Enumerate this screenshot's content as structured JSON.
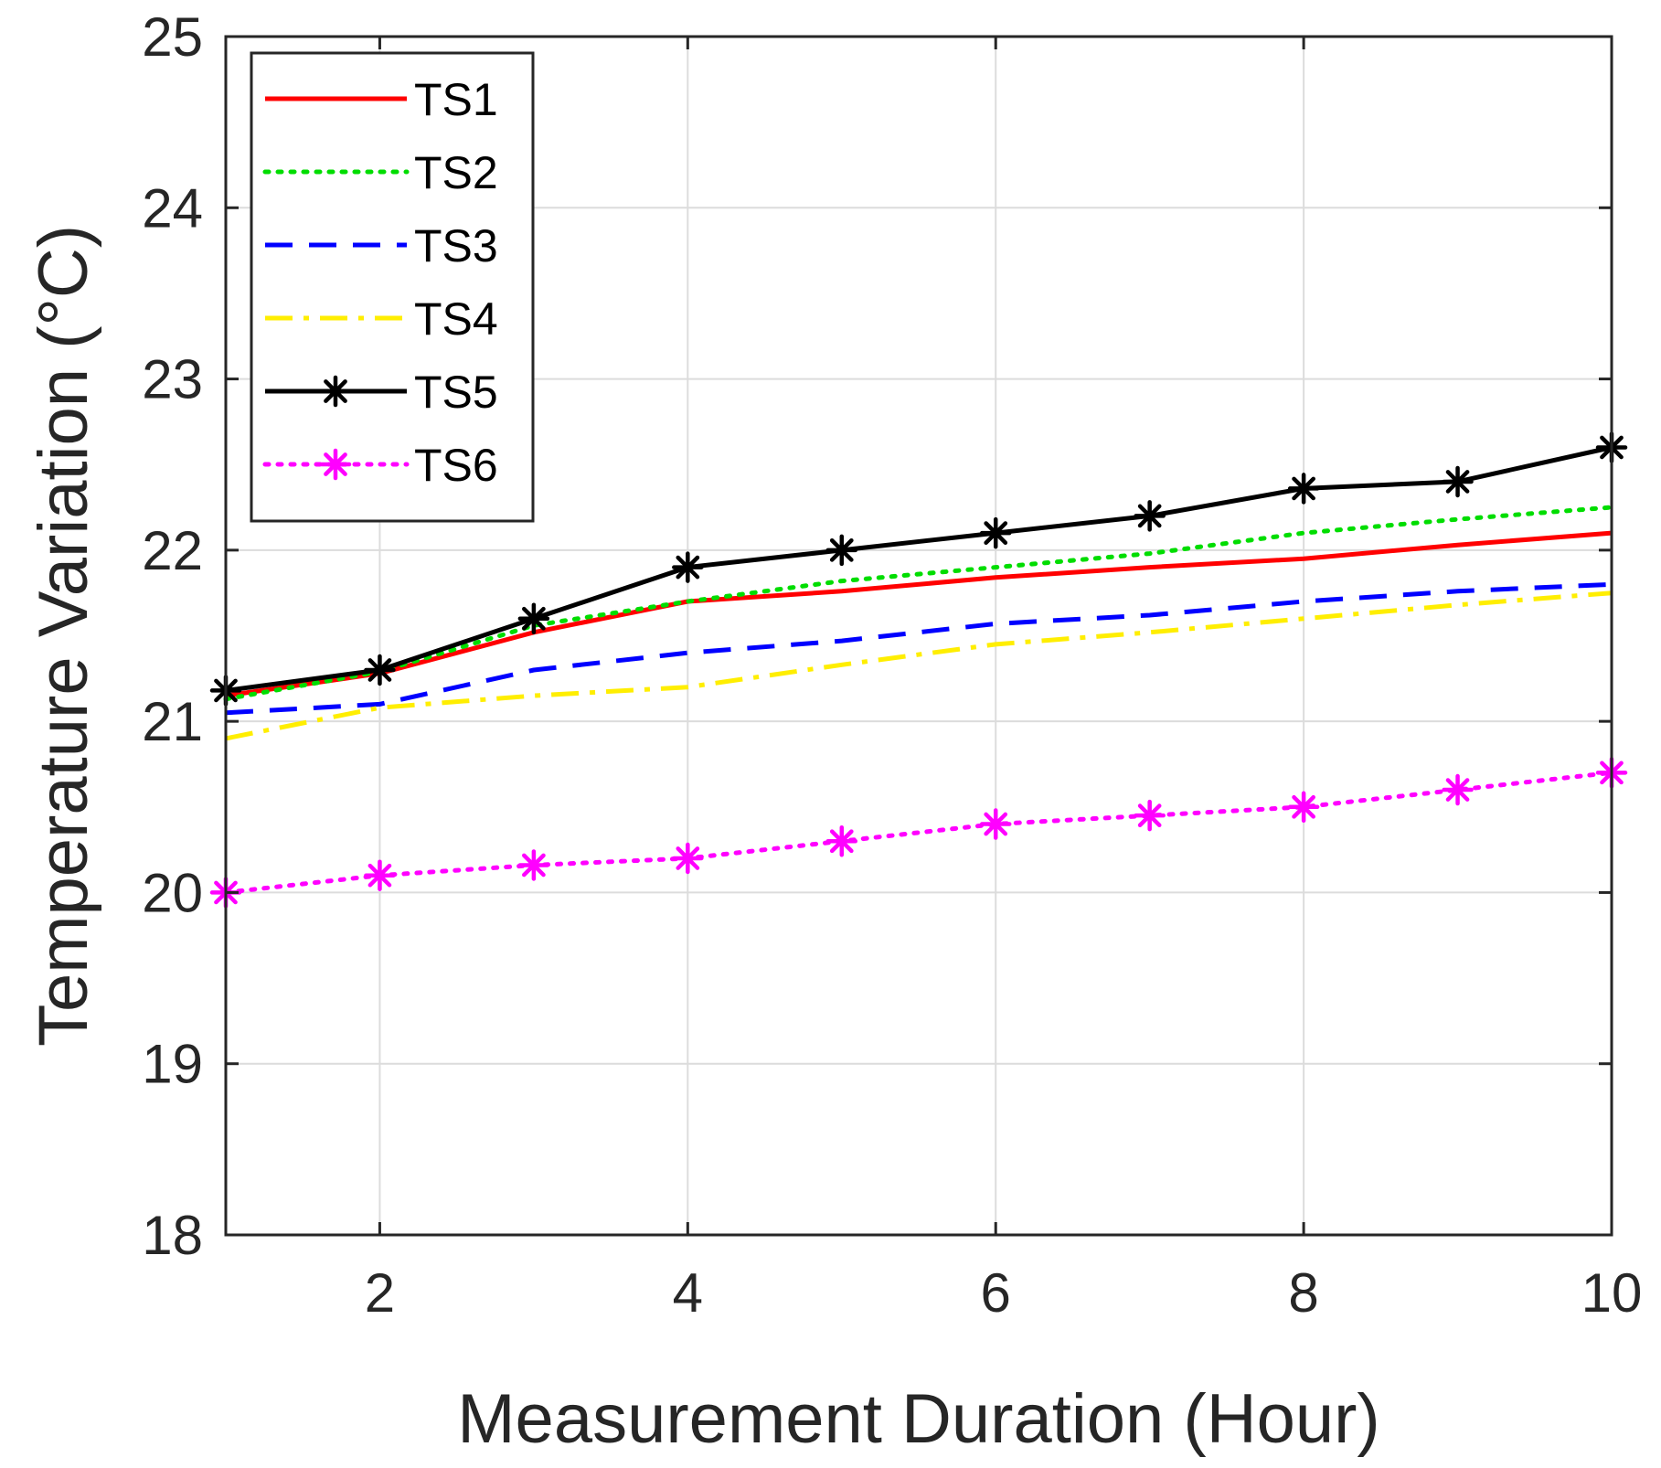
{
  "chart_data": {
    "type": "line",
    "title": "",
    "xlabel": "Measurement Duration (Hour)",
    "ylabel": "Temperature Variation (°C)",
    "xlim": [
      1,
      10
    ],
    "ylim": [
      18,
      25
    ],
    "xticks": [
      2,
      4,
      6,
      8,
      10
    ],
    "yticks": [
      18,
      19,
      20,
      21,
      22,
      23,
      24,
      25
    ],
    "grid": true,
    "legend_position": "top-left",
    "x": [
      1,
      2,
      3,
      4,
      5,
      6,
      7,
      8,
      9,
      10
    ],
    "series": [
      {
        "name": "TS1",
        "color": "#ff0000",
        "style": "solid",
        "marker": "none",
        "values": [
          21.15,
          21.28,
          21.52,
          21.7,
          21.76,
          21.84,
          21.9,
          21.95,
          22.03,
          22.1
        ]
      },
      {
        "name": "TS2",
        "color": "#00dd00",
        "style": "dotted",
        "marker": "none",
        "values": [
          21.13,
          21.29,
          21.56,
          21.7,
          21.82,
          21.9,
          21.98,
          22.1,
          22.18,
          22.25
        ]
      },
      {
        "name": "TS3",
        "color": "#0000ff",
        "style": "dashed",
        "marker": "none",
        "values": [
          21.05,
          21.1,
          21.3,
          21.4,
          21.47,
          21.57,
          21.62,
          21.7,
          21.76,
          21.8
        ]
      },
      {
        "name": "TS4",
        "color": "#ffee00",
        "style": "dashdot",
        "marker": "none",
        "values": [
          20.9,
          21.08,
          21.15,
          21.2,
          21.33,
          21.45,
          21.52,
          21.6,
          21.68,
          21.75
        ]
      },
      {
        "name": "TS5",
        "color": "#000000",
        "style": "solid",
        "marker": "asterisk",
        "values": [
          21.18,
          21.3,
          21.6,
          21.9,
          22.0,
          22.1,
          22.2,
          22.36,
          22.4,
          22.6
        ]
      },
      {
        "name": "TS6",
        "color": "#ff00ff",
        "style": "dotted",
        "marker": "asterisk",
        "values": [
          20.0,
          20.1,
          20.16,
          20.2,
          20.3,
          20.4,
          20.45,
          20.5,
          20.6,
          20.7
        ]
      }
    ]
  }
}
